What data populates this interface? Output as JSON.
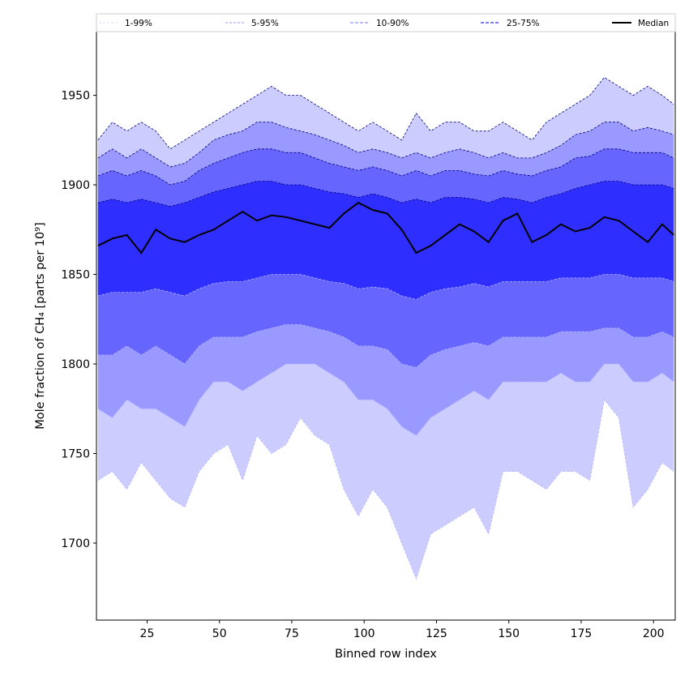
{
  "chart_data": {
    "type": "area",
    "xlabel": "Binned row index",
    "ylabel": "Mole fraction of CH₄ [parts per 10⁹]",
    "xlim": [
      7.5,
      207.5
    ],
    "ylim": [
      1657,
      1986
    ],
    "xticks": [
      25,
      50,
      75,
      100,
      125,
      150,
      175,
      200
    ],
    "yticks": [
      1700,
      1750,
      1800,
      1850,
      1900,
      1950
    ],
    "legend": {
      "placement": "top",
      "entries": [
        "1-99%",
        "5-95%",
        "10-90%",
        "25-75%",
        "Median"
      ]
    },
    "colors": {
      "band_1_99": "#ccccff",
      "band_5_95": "#9999ff",
      "band_10_90": "#6666ff",
      "band_25_75": "#2e2eff",
      "median": "#000000",
      "edge_upper": "#000080",
      "edge_lower": "#b4b4ff"
    },
    "x": [
      8,
      13,
      18,
      23,
      28,
      33,
      38,
      43,
      48,
      53,
      58,
      63,
      68,
      73,
      78,
      83,
      88,
      93,
      98,
      103,
      108,
      113,
      118,
      123,
      128,
      133,
      138,
      143,
      148,
      153,
      158,
      163,
      168,
      173,
      178,
      183,
      188,
      193,
      198,
      203,
      207
    ],
    "series": [
      {
        "name": "1-99%",
        "lower": [
          1735,
          1740,
          1730,
          1745,
          1735,
          1725,
          1720,
          1740,
          1750,
          1755,
          1735,
          1760,
          1750,
          1755,
          1770,
          1760,
          1755,
          1730,
          1715,
          1730,
          1720,
          1700,
          1680,
          1705,
          1710,
          1715,
          1720,
          1705,
          1740,
          1740,
          1735,
          1730,
          1740,
          1740,
          1735,
          1780,
          1770,
          1720,
          1730,
          1745,
          1740
        ],
        "upper": [
          1925,
          1935,
          1930,
          1935,
          1930,
          1920,
          1925,
          1930,
          1935,
          1940,
          1945,
          1950,
          1955,
          1950,
          1950,
          1945,
          1940,
          1935,
          1930,
          1935,
          1930,
          1925,
          1940,
          1930,
          1935,
          1935,
          1930,
          1930,
          1935,
          1930,
          1925,
          1935,
          1940,
          1945,
          1950,
          1960,
          1955,
          1950,
          1955,
          1950,
          1945
        ]
      },
      {
        "name": "5-95%",
        "lower": [
          1775,
          1770,
          1780,
          1775,
          1775,
          1770,
          1765,
          1780,
          1790,
          1790,
          1785,
          1790,
          1795,
          1800,
          1800,
          1800,
          1795,
          1790,
          1780,
          1780,
          1775,
          1765,
          1760,
          1770,
          1775,
          1780,
          1785,
          1780,
          1790,
          1790,
          1790,
          1790,
          1795,
          1790,
          1790,
          1800,
          1800,
          1790,
          1790,
          1795,
          1790
        ],
        "upper": [
          1915,
          1920,
          1915,
          1920,
          1915,
          1910,
          1912,
          1918,
          1925,
          1928,
          1930,
          1935,
          1935,
          1932,
          1930,
          1928,
          1925,
          1922,
          1918,
          1920,
          1918,
          1915,
          1918,
          1915,
          1918,
          1920,
          1918,
          1915,
          1918,
          1915,
          1915,
          1918,
          1922,
          1928,
          1930,
          1935,
          1935,
          1930,
          1932,
          1930,
          1928
        ]
      },
      {
        "name": "10-90%",
        "lower": [
          1805,
          1805,
          1810,
          1805,
          1810,
          1805,
          1800,
          1810,
          1815,
          1815,
          1815,
          1818,
          1820,
          1822,
          1822,
          1820,
          1818,
          1815,
          1810,
          1810,
          1808,
          1800,
          1798,
          1805,
          1808,
          1810,
          1812,
          1810,
          1815,
          1815,
          1815,
          1815,
          1818,
          1818,
          1818,
          1820,
          1820,
          1815,
          1815,
          1818,
          1815
        ],
        "upper": [
          1905,
          1908,
          1905,
          1908,
          1905,
          1900,
          1902,
          1908,
          1912,
          1915,
          1918,
          1920,
          1920,
          1918,
          1918,
          1915,
          1912,
          1910,
          1908,
          1910,
          1908,
          1905,
          1908,
          1905,
          1908,
          1908,
          1906,
          1905,
          1908,
          1906,
          1905,
          1908,
          1910,
          1915,
          1916,
          1920,
          1920,
          1918,
          1918,
          1918,
          1915
        ]
      },
      {
        "name": "25-75%",
        "lower": [
          1838,
          1840,
          1840,
          1840,
          1842,
          1840,
          1838,
          1842,
          1845,
          1846,
          1846,
          1848,
          1850,
          1850,
          1850,
          1848,
          1846,
          1845,
          1842,
          1843,
          1842,
          1838,
          1836,
          1840,
          1842,
          1843,
          1845,
          1843,
          1846,
          1846,
          1846,
          1846,
          1848,
          1848,
          1848,
          1850,
          1850,
          1848,
          1848,
          1848,
          1846
        ],
        "upper": [
          1890,
          1892,
          1890,
          1892,
          1890,
          1888,
          1890,
          1893,
          1896,
          1898,
          1900,
          1902,
          1902,
          1900,
          1900,
          1898,
          1896,
          1895,
          1893,
          1895,
          1893,
          1890,
          1892,
          1890,
          1893,
          1893,
          1892,
          1890,
          1893,
          1892,
          1890,
          1893,
          1895,
          1898,
          1900,
          1902,
          1902,
          1900,
          1900,
          1900,
          1898
        ]
      },
      {
        "name": "Median",
        "values": [
          1866,
          1870,
          1872,
          1862,
          1875,
          1870,
          1868,
          1872,
          1875,
          1880,
          1885,
          1880,
          1883,
          1882,
          1880,
          1878,
          1876,
          1884,
          1890,
          1886,
          1884,
          1875,
          1862,
          1866,
          1872,
          1878,
          1874,
          1868,
          1880,
          1884,
          1868,
          1872,
          1878,
          1874,
          1876,
          1882,
          1880,
          1874,
          1868,
          1878,
          1872
        ]
      }
    ]
  }
}
